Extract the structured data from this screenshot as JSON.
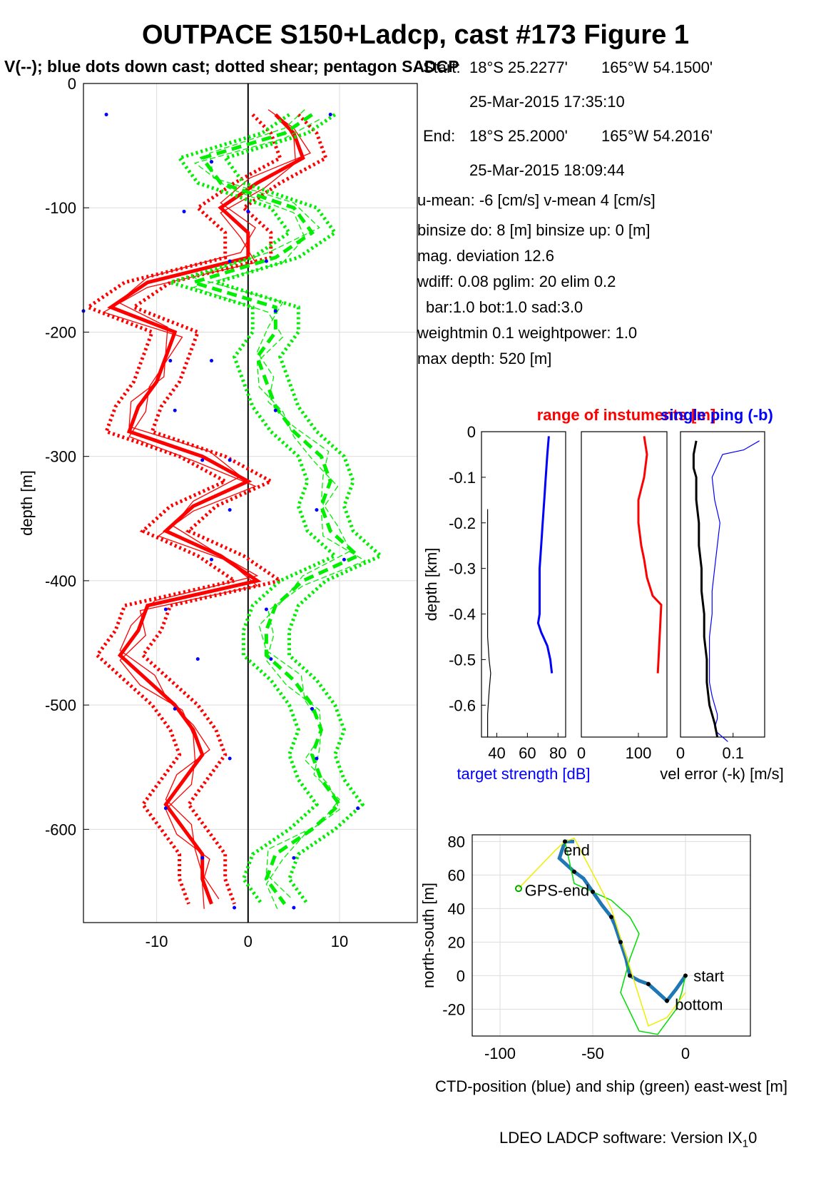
{
  "page": {
    "title": "OUTPACE S150+Ladcp, cast #173  Figure 1",
    "subtitle": "V(--); blue dots down cast; dotted shear; pentagon SADCP",
    "footer": "LDEO LADCP software: Version IX",
    "footer_sub": "1",
    "footer_tail": "0"
  },
  "info": {
    "start_label": "Start:",
    "start_lat": "18°S 25.2277'",
    "start_lon": "165°W 54.1500'",
    "start_time": "25-Mar-2015 17:35:10",
    "end_label": "End:",
    "end_lat": "18°S 25.2000'",
    "end_lon": "165°W 54.2016'",
    "end_time": "25-Mar-2015 18:09:44",
    "umean": "u-mean:  -6 [cm/s]    v-mean   4 [cm/s]",
    "binsize": "binsize do: 8 [m]  binsize up:  0 [m]",
    "magdev": "mag. deviation 12.6",
    "wdiff": "wdiff: 0.08  pglim: 20  elim 0.2",
    "bar": "bar:1.0 bot:1.0 sad:3.0",
    "weight": "weightmin 0.1  weightpower: 1.0",
    "maxdepth": "max depth: 520 [m]"
  },
  "chart_data": [
    {
      "id": "velocity-profile",
      "type": "line",
      "title": "V(--); blue dots down cast; dotted shear; pentagon SADCP",
      "xlabel": "",
      "ylabel": "depth [m]",
      "xlim": [
        -18,
        18.5
      ],
      "ylim": [
        -675,
        0
      ],
      "xticks": [
        -10,
        0,
        10
      ],
      "yticks": [
        0,
        -100,
        -200,
        -300,
        -400,
        -500,
        -600
      ],
      "grid": true,
      "series": [
        {
          "name": "u",
          "color": "#ff0000",
          "depth": [
            -25,
            -40,
            -60,
            -80,
            -100,
            -120,
            -140,
            -160,
            -180,
            -200,
            -220,
            -240,
            -260,
            -280,
            -300,
            -320,
            -340,
            -360,
            -380,
            -400,
            -420,
            -440,
            -460,
            -480,
            -500,
            -520,
            -540,
            -560,
            -580,
            -600,
            -620,
            -640,
            -660
          ],
          "values": [
            3,
            5,
            6,
            1,
            -3,
            0,
            0,
            -11,
            -15,
            -8,
            -9,
            -10,
            -12,
            -13,
            -5,
            0,
            -6,
            -9,
            -3,
            1,
            -11,
            -12,
            -14,
            -11,
            -8,
            -6,
            -5,
            -7,
            -9,
            -7,
            -5,
            -5,
            -4
          ]
        },
        {
          "name": "v",
          "color": "#00ee00",
          "depth": [
            -25,
            -40,
            -60,
            -80,
            -100,
            -120,
            -140,
            -160,
            -180,
            -200,
            -220,
            -240,
            -260,
            -280,
            -300,
            -320,
            -340,
            -360,
            -380,
            -400,
            -420,
            -440,
            -460,
            -480,
            -500,
            -520,
            -540,
            -560,
            -580,
            -600,
            -620,
            -640,
            -660
          ],
          "values": [
            7,
            4,
            -5,
            -3,
            5,
            7,
            3,
            -6,
            3,
            3,
            1,
            2,
            3,
            5,
            8,
            9,
            8,
            9,
            12,
            6,
            3,
            2,
            2,
            5,
            7,
            8,
            7,
            8,
            10,
            7,
            3,
            2,
            4
          ]
        }
      ],
      "downcast_dots": [
        {
          "u": -15.5,
          "v": 9,
          "depth": -25
        },
        {
          "u": -4,
          "v": -4,
          "depth": -63
        },
        {
          "u": -7,
          "v": 0,
          "depth": -103
        },
        {
          "u": -2,
          "v": 2,
          "depth": -143
        },
        {
          "u": -18,
          "v": 3,
          "depth": -183
        },
        {
          "u": -8.5,
          "v": -4,
          "depth": -223
        },
        {
          "u": -8,
          "v": 3,
          "depth": -263
        },
        {
          "u": -5,
          "v": -2,
          "depth": -303
        },
        {
          "u": -2,
          "v": 7.5,
          "depth": -343
        },
        {
          "u": -4,
          "v": 10.5,
          "depth": -383
        },
        {
          "u": -9,
          "v": 2,
          "depth": -423
        },
        {
          "u": -5.5,
          "v": 2.5,
          "depth": -463
        },
        {
          "u": -8,
          "v": 7,
          "depth": -503
        },
        {
          "u": -2,
          "v": 7.5,
          "depth": -543
        },
        {
          "u": -9,
          "v": 12,
          "depth": -583
        },
        {
          "u": -5,
          "v": 5,
          "depth": -623
        },
        {
          "u": -1.5,
          "v": 5,
          "depth": -663
        }
      ]
    },
    {
      "id": "target-strength",
      "type": "line",
      "xlabel": "target strength [dB]",
      "ylabel": "depth [km]",
      "xlim": [
        30,
        85
      ],
      "ylim": [
        -0.67,
        0
      ],
      "xticks": [
        40,
        60,
        80
      ],
      "yticks": [
        0,
        -0.1,
        -0.2,
        -0.3,
        -0.4,
        -0.5,
        -0.6
      ],
      "grid": false,
      "series": [
        {
          "name": "target strength",
          "color": "#0000ff",
          "x": [
            74,
            73,
            72,
            71,
            70,
            69,
            68,
            68,
            68,
            67,
            69,
            73,
            75,
            76
          ],
          "y": [
            -0.01,
            -0.05,
            -0.1,
            -0.15,
            -0.2,
            -0.25,
            -0.3,
            -0.35,
            -0.4,
            -0.42,
            -0.44,
            -0.47,
            -0.5,
            -0.53
          ]
        },
        {
          "name": "black",
          "color": "#000000",
          "x": [
            34,
            34,
            34,
            34,
            34,
            34,
            35,
            36,
            35,
            34,
            34
          ],
          "y": [
            -0.17,
            -0.25,
            -0.3,
            -0.35,
            -0.4,
            -0.45,
            -0.5,
            -0.53,
            -0.57,
            -0.62,
            -0.67
          ]
        }
      ]
    },
    {
      "id": "range-of-instruments",
      "type": "line",
      "title": "range of instuments [m]",
      "xlim": [
        0,
        150
      ],
      "ylim": [
        -0.67,
        0
      ],
      "xticks": [
        0,
        100
      ],
      "grid": false,
      "series": [
        {
          "name": "range",
          "color": "#ff0000",
          "x": [
            110,
            115,
            110,
            100,
            100,
            105,
            110,
            115,
            125,
            140,
            138,
            136,
            134
          ],
          "y": [
            -0.01,
            -0.05,
            -0.1,
            -0.15,
            -0.2,
            -0.25,
            -0.28,
            -0.32,
            -0.36,
            -0.38,
            -0.43,
            -0.48,
            -0.53
          ]
        }
      ]
    },
    {
      "id": "vel-error",
      "type": "line",
      "title": "single ping (-b)",
      "xlabel": "vel error (-k) [m/s]",
      "xlim": [
        0,
        0.16
      ],
      "ylim": [
        -0.67,
        0
      ],
      "xticks": [
        0,
        0.1
      ],
      "grid": false,
      "series": [
        {
          "name": "single ping",
          "color": "#0000ff",
          "x": [
            0.15,
            0.12,
            0.08,
            0.06,
            0.065,
            0.075,
            0.07,
            0.065,
            0.06,
            0.06,
            0.055,
            0.055,
            0.055,
            0.06,
            0.065,
            0.07,
            0.07,
            0.065,
            0.07,
            0.09
          ],
          "y": [
            -0.02,
            -0.04,
            -0.05,
            -0.1,
            -0.15,
            -0.2,
            -0.25,
            -0.3,
            -0.35,
            -0.4,
            -0.45,
            -0.5,
            -0.55,
            -0.58,
            -0.6,
            -0.62,
            -0.63,
            -0.65,
            -0.66,
            -0.68
          ]
        },
        {
          "name": "vel error",
          "color": "#000000",
          "x": [
            0.03,
            0.025,
            0.025,
            0.03,
            0.03,
            0.035,
            0.035,
            0.04,
            0.04,
            0.045,
            0.045,
            0.05,
            0.05,
            0.055,
            0.065,
            0.07
          ],
          "y": [
            -0.02,
            -0.05,
            -0.08,
            -0.1,
            -0.15,
            -0.2,
            -0.25,
            -0.3,
            -0.35,
            -0.4,
            -0.45,
            -0.5,
            -0.55,
            -0.6,
            -0.64,
            -0.67
          ]
        }
      ]
    },
    {
      "id": "position-track",
      "type": "line",
      "xlabel": "CTD-position (blue) and ship (green) east-west [m]",
      "ylabel": "north-south [m]",
      "xlim": [
        -115,
        35
      ],
      "ylim": [
        -36,
        84
      ],
      "xticks": [
        -100,
        -50,
        0
      ],
      "yticks": [
        80,
        60,
        40,
        20,
        0,
        -20
      ],
      "grid": true,
      "series": [
        {
          "name": "CTD-position",
          "color": "#1f77b4",
          "x": [
            0,
            -5,
            -10,
            -15,
            -20,
            -25,
            -30,
            -32,
            -35,
            -38,
            -40,
            -45,
            -50,
            -55,
            -60,
            -68,
            -65,
            -60
          ],
          "y": [
            0,
            -8,
            -15,
            -10,
            -5,
            -3,
            0,
            10,
            20,
            30,
            35,
            42,
            50,
            58,
            62,
            70,
            80,
            80
          ]
        },
        {
          "name": "ship",
          "color": "#00dd00",
          "x": [
            0,
            -2,
            -5,
            -15,
            -25,
            -35,
            -30,
            -25,
            -30,
            -35,
            -40,
            -50,
            -60,
            -65
          ],
          "y": [
            0,
            -10,
            -20,
            -35,
            -33,
            -10,
            10,
            25,
            35,
            40,
            45,
            50,
            55,
            80
          ]
        },
        {
          "name": "yellow",
          "color": "#eeee00",
          "x": [
            -90,
            -70,
            -65,
            -60,
            -40,
            -20,
            -10,
            0
          ],
          "y": [
            52,
            75,
            80,
            82,
            40,
            -30,
            -25,
            -10
          ]
        }
      ],
      "labels": [
        {
          "text": "end",
          "x": -68,
          "y": 75
        },
        {
          "text": "GPS-end",
          "x": -89,
          "y": 51
        },
        {
          "text": "start",
          "x": 2,
          "y": 0
        },
        {
          "text": "bottom",
          "x": -8,
          "y": -17
        }
      ]
    }
  ]
}
